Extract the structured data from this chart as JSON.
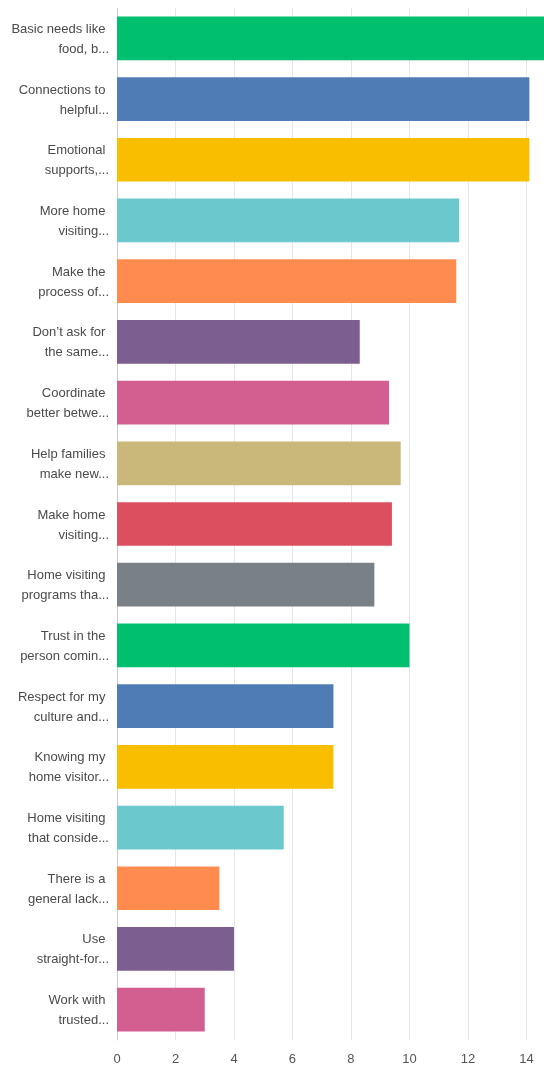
{
  "chart_data": {
    "type": "bar",
    "orientation": "horizontal",
    "categories": [
      "Basic needs like food, b...",
      "Connections to helpful...",
      "Emotional supports,...",
      "More home visiting...",
      "Make the process of...",
      "Don’t ask for the same...",
      "Coordinate better betwe...",
      "Help families make new...",
      "Make home visiting...",
      "Home visiting programs tha...",
      "Trust in the person comin...",
      "Respect for my culture and...",
      "Knowing my home visitor...",
      "Home visiting that conside...",
      "There is a general lack...",
      "Use straight-for...",
      "Work with trusted..."
    ],
    "values": [
      14.6,
      14.1,
      14.1,
      11.7,
      11.6,
      8.3,
      9.3,
      9.7,
      9.4,
      8.8,
      10.0,
      7.4,
      7.4,
      5.7,
      3.5,
      4.0,
      3.0
    ],
    "colors": [
      "#00bf6f",
      "#507cb6",
      "#f9be00",
      "#6bc8cd",
      "#ff8b4f",
      "#7d5e90",
      "#d25f90",
      "#c9b87a",
      "#dc4f5e",
      "#7a8186",
      "#00bf6f",
      "#507cb6",
      "#f9be00",
      "#6bc8cd",
      "#ff8b4f",
      "#7d5e90",
      "#d25f90"
    ],
    "xlim": [
      0,
      14.6
    ],
    "xticks": [
      0,
      2,
      4,
      6,
      8,
      10,
      12,
      14
    ],
    "grid": "x"
  }
}
